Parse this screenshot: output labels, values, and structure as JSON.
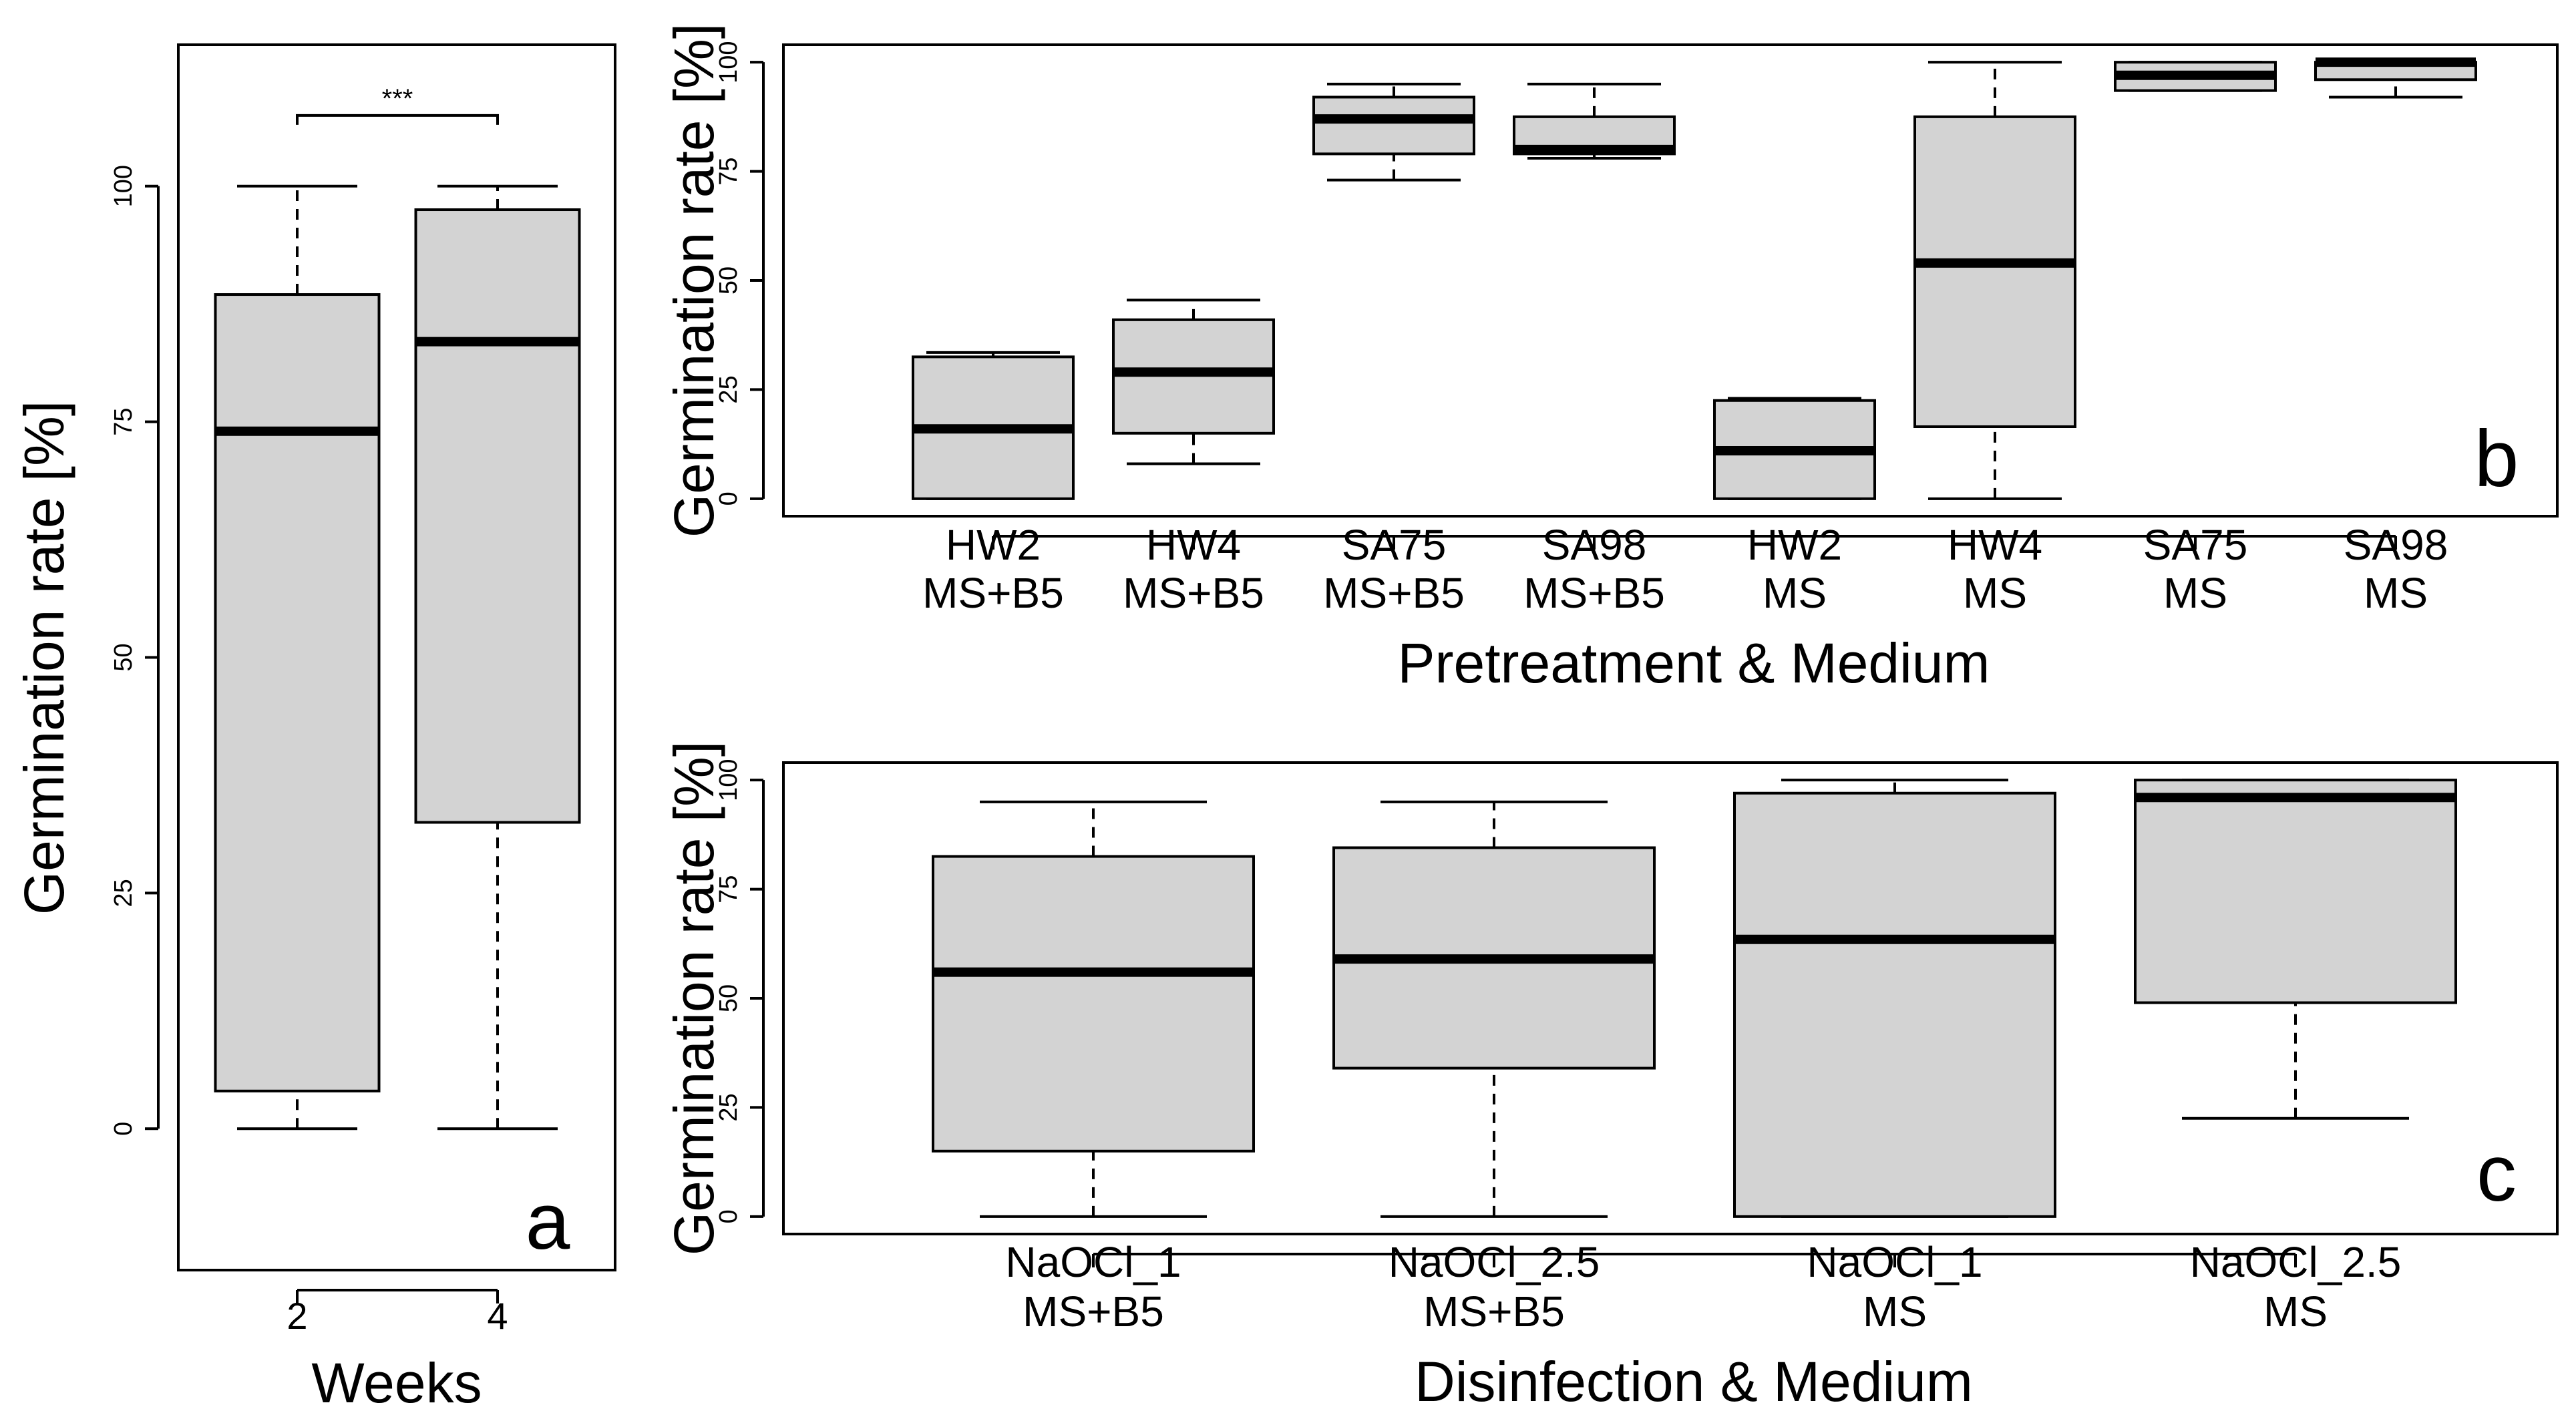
{
  "chart_data": [
    {
      "panel": "a",
      "type": "box",
      "xlabel": "Weeks",
      "ylabel": "Germination rate [%]",
      "ylim": [
        -15,
        115
      ],
      "yticks": [
        "0",
        "25",
        "50",
        "75",
        "100"
      ],
      "categories": [
        [
          "2"
        ],
        [
          "4"
        ]
      ],
      "boxes": [
        {
          "min": 0,
          "q1": 4,
          "median": 74,
          "q3": 88.5,
          "max": 100
        },
        {
          "min": 0,
          "q1": 32.5,
          "median": 83.5,
          "q3": 97.5,
          "max": 100
        }
      ],
      "significance": {
        "label": "***",
        "from": 0,
        "to": 1,
        "y": 107.5
      },
      "panel_label": "a"
    },
    {
      "panel": "b",
      "type": "box",
      "xlabel": "Pretreatment & Medium",
      "ylabel": "Germination rate [%]",
      "ylim": [
        -4,
        104
      ],
      "yticks": [
        "0",
        "25",
        "50",
        "75",
        "100"
      ],
      "categories": [
        [
          "HW2",
          "MS+B5"
        ],
        [
          "HW4",
          "MS+B5"
        ],
        [
          "SA75",
          "MS+B5"
        ],
        [
          "SA98",
          "MS+B5"
        ],
        [
          "HW2",
          "MS"
        ],
        [
          "HW4",
          "MS"
        ],
        [
          "SA75",
          "MS"
        ],
        [
          "SA98",
          "MS"
        ]
      ],
      "boxes": [
        {
          "min": 0,
          "q1": 0,
          "median": 16,
          "q3": 32.5,
          "max": 33.5
        },
        {
          "min": 8,
          "q1": 15,
          "median": 29,
          "q3": 41,
          "max": 45.5
        },
        {
          "min": 73,
          "q1": 79,
          "median": 87,
          "q3": 92,
          "max": 95
        },
        {
          "min": 78,
          "q1": 79,
          "median": 80,
          "q3": 87.5,
          "max": 95
        },
        {
          "min": 0,
          "q1": 0,
          "median": 11,
          "q3": 22.5,
          "max": 23
        },
        {
          "min": 0,
          "q1": 16.5,
          "median": 54,
          "q3": 87.5,
          "max": 100
        },
        {
          "min": 93.5,
          "q1": 93.5,
          "median": 97,
          "q3": 100,
          "max": 100
        },
        {
          "min": 92,
          "q1": 96,
          "median": 100,
          "q3": 100,
          "max": 100
        }
      ],
      "panel_label": "b"
    },
    {
      "panel": "c",
      "type": "box",
      "xlabel": "Disinfection & Medium",
      "ylabel": "Germination rate [%]",
      "ylim": [
        -4,
        104
      ],
      "yticks": [
        "0",
        "25",
        "50",
        "75",
        "100"
      ],
      "categories": [
        [
          "NaOCl_1",
          "MS+B5"
        ],
        [
          "NaOCl_2.5",
          "MS+B5"
        ],
        [
          "NaOCl_1",
          "MS"
        ],
        [
          "NaOCl_2.5",
          "MS"
        ]
      ],
      "boxes": [
        {
          "min": 0,
          "q1": 15,
          "median": 56,
          "q3": 82.5,
          "max": 95
        },
        {
          "min": 0,
          "q1": 34,
          "median": 59,
          "q3": 84.5,
          "max": 95
        },
        {
          "min": 0,
          "q1": 0,
          "median": 63.5,
          "q3": 97,
          "max": 100
        },
        {
          "min": 22.5,
          "q1": 49,
          "median": 96,
          "q3": 100,
          "max": 100
        }
      ],
      "panel_label": "c"
    }
  ]
}
